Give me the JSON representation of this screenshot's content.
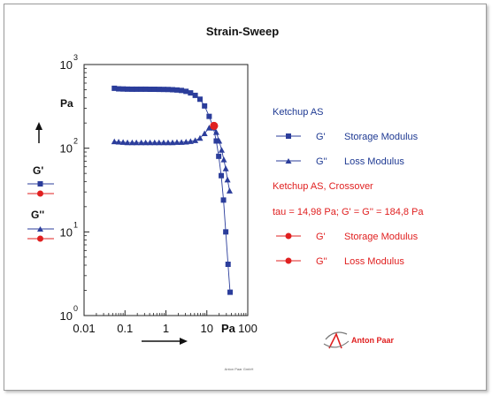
{
  "colors": {
    "series_blue": "#2b3d9b",
    "series_red": "#e02020",
    "legend_blue_text": "#1f3a93",
    "legend_red_text": "#e02020"
  },
  "chart_data": {
    "type": "scatter",
    "title": "Strain-Sweep",
    "x_unit": "Pa",
    "y_unit": "Pa",
    "x_scale": "log",
    "y_scale": "log",
    "xlim": [
      0.01,
      100
    ],
    "ylim": [
      1,
      1000
    ],
    "x_ticks": [
      "0.01",
      "0.1",
      "1",
      "10",
      "100"
    ],
    "y_ticks": [
      {
        "base": "10",
        "exp": "0"
      },
      {
        "base": "10",
        "exp": "1"
      },
      {
        "base": "10",
        "exp": "2"
      },
      {
        "base": "10",
        "exp": "3"
      }
    ],
    "grid": false,
    "legend_position": "right",
    "series": [
      {
        "name": "G'",
        "description": "Storage Modulus",
        "group": "Ketchup AS",
        "marker": "square",
        "color": "#2b3d9b",
        "points": [
          [
            0.055,
            520
          ],
          [
            0.07,
            512
          ],
          [
            0.09,
            510
          ],
          [
            0.115,
            508
          ],
          [
            0.15,
            507
          ],
          [
            0.19,
            507
          ],
          [
            0.25,
            507
          ],
          [
            0.32,
            507
          ],
          [
            0.41,
            506
          ],
          [
            0.53,
            506
          ],
          [
            0.68,
            505
          ],
          [
            0.88,
            504
          ],
          [
            1.13,
            503
          ],
          [
            1.45,
            500
          ],
          [
            1.86,
            496
          ],
          [
            2.4,
            490
          ],
          [
            3.1,
            478
          ],
          [
            4.0,
            458
          ],
          [
            5.2,
            428
          ],
          [
            6.8,
            385
          ],
          [
            8.8,
            320
          ],
          [
            11.4,
            240
          ],
          [
            14.5,
            175
          ],
          [
            17.0,
            122
          ],
          [
            19.5,
            80
          ],
          [
            22.5,
            47
          ],
          [
            25.5,
            24
          ],
          [
            29.0,
            10
          ],
          [
            33.0,
            4.1
          ],
          [
            37.0,
            1.9
          ]
        ]
      },
      {
        "name": "G''",
        "description": "Loss Modulus",
        "group": "Ketchup AS",
        "marker": "triangle",
        "color": "#2b3d9b",
        "points": [
          [
            0.055,
            120
          ],
          [
            0.07,
            119
          ],
          [
            0.09,
            118
          ],
          [
            0.115,
            117
          ],
          [
            0.15,
            117
          ],
          [
            0.19,
            117
          ],
          [
            0.25,
            117
          ],
          [
            0.32,
            117
          ],
          [
            0.41,
            117
          ],
          [
            0.53,
            117
          ],
          [
            0.68,
            117
          ],
          [
            0.88,
            117
          ],
          [
            1.13,
            117
          ],
          [
            1.45,
            117
          ],
          [
            1.86,
            118
          ],
          [
            2.4,
            118
          ],
          [
            3.1,
            119
          ],
          [
            4.0,
            121
          ],
          [
            5.2,
            124
          ],
          [
            6.8,
            132
          ],
          [
            8.8,
            150
          ],
          [
            11.4,
            175
          ],
          [
            14.0,
            180
          ],
          [
            17.0,
            155
          ],
          [
            20.0,
            122
          ],
          [
            23.0,
            95
          ],
          [
            26.0,
            73
          ],
          [
            29.0,
            57
          ],
          [
            32.0,
            42
          ],
          [
            36.0,
            31
          ]
        ]
      },
      {
        "name": "G'",
        "description": "Storage Modulus",
        "group": "Ketchup AS, Crossover",
        "marker": "circle",
        "color": "#e02020",
        "points": [
          [
            14.98,
            184.8
          ]
        ]
      },
      {
        "name": "G''",
        "description": "Loss Modulus",
        "group": "Ketchup AS, Crossover",
        "marker": "circle",
        "color": "#e02020",
        "points": [
          [
            14.98,
            184.8
          ]
        ]
      }
    ]
  },
  "legend": {
    "group1_title": "Ketchup AS",
    "group1_items": [
      {
        "symbol": "G'",
        "label": "Storage Modulus"
      },
      {
        "symbol": "G''",
        "label": "Loss Modulus"
      }
    ],
    "group2_title": "Ketchup AS, Crossover",
    "group2_note": "tau = 14,98 Pa; G' = G'' = 184,8 Pa",
    "group2_items": [
      {
        "symbol": "G'",
        "label": "Storage Modulus"
      },
      {
        "symbol": "G''",
        "label": "Loss Modulus"
      }
    ]
  },
  "left_key": {
    "g1": "G'",
    "g2": "G''"
  },
  "logo": {
    "text": "Anton Paar",
    "small_print": "Anton Paar GmbH"
  }
}
